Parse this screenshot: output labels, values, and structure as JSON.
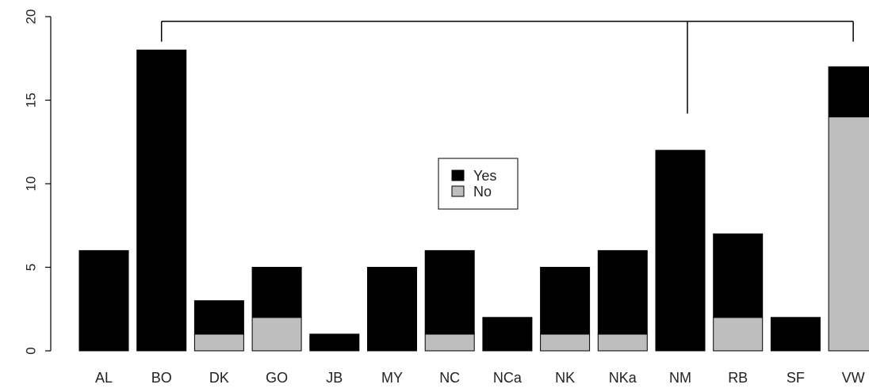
{
  "chart_data": {
    "type": "bar",
    "stacked": true,
    "categories": [
      "AL",
      "BO",
      "DK",
      "GO",
      "JB",
      "MY",
      "NC",
      "NCa",
      "NK",
      "NKa",
      "NM",
      "RB",
      "SF",
      "VW"
    ],
    "series": [
      {
        "name": "No",
        "color": "#bebebe",
        "values": [
          0,
          0,
          1,
          2,
          0,
          0,
          1,
          0,
          1,
          1,
          0,
          2,
          0,
          14
        ]
      },
      {
        "name": "Yes",
        "color": "#000000",
        "values": [
          6,
          18,
          2,
          3,
          1,
          5,
          5,
          2,
          4,
          5,
          12,
          5,
          2,
          3
        ]
      }
    ],
    "legend": {
      "position": "center",
      "entries": [
        {
          "label": "Yes",
          "color": "#000000"
        },
        {
          "label": "No",
          "color": "#bebebe"
        }
      ]
    },
    "yaxis": {
      "ylim": [
        0,
        20
      ],
      "ticks": [
        0,
        5,
        10,
        15,
        20
      ],
      "tick_labels": [
        "0",
        "5",
        "10",
        "15",
        "20"
      ]
    },
    "title": "",
    "xlabel": "",
    "ylabel": "",
    "grid": false,
    "annotation": {
      "type": "bracket",
      "from": "BO",
      "to": "VW",
      "mid": "NM",
      "y_top": 20,
      "left_drop_to": 18.5,
      "right_drop_to": 18.5,
      "mid_drop_to": 14.2
    }
  }
}
